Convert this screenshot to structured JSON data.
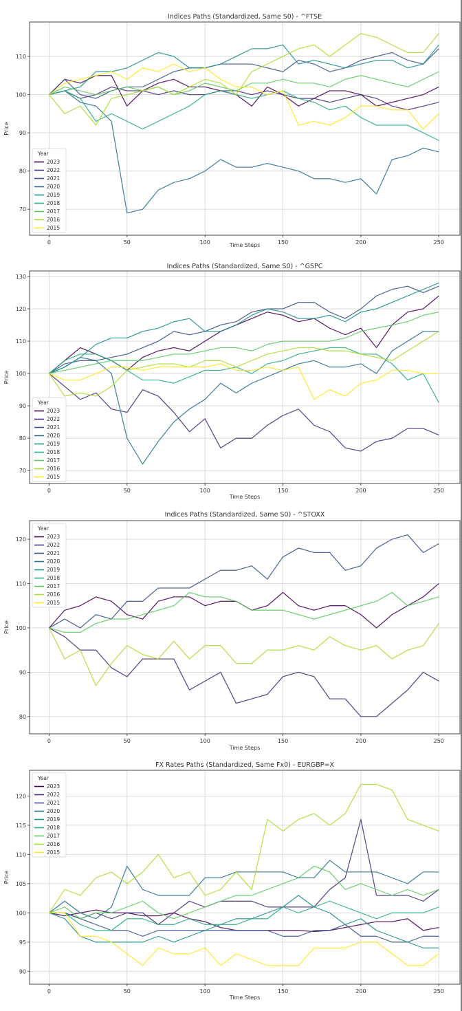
{
  "x_steps": [
    0,
    10,
    20,
    30,
    40,
    50,
    60,
    70,
    80,
    90,
    100,
    110,
    120,
    130,
    140,
    150,
    160,
    170,
    180,
    190,
    200,
    210,
    220,
    230,
    240,
    250
  ],
  "colors": {
    "2023": "#440154",
    "2022": "#472d7b",
    "2021": "#3b528b",
    "2020": "#2c728e",
    "2019": "#21918c",
    "2018": "#28ae80",
    "2017": "#5ec962",
    "2016": "#addc30",
    "2015": "#fde725"
  },
  "chart_data": [
    {
      "type": "line",
      "title": "Indices Paths (Standardized, Same S0) - ^FTSE",
      "xlabel": "Time Steps",
      "ylabel": "Price",
      "xlim": [
        -12.55,
        263.55
      ],
      "ylim": [
        63.2,
        119.0
      ],
      "xticks": [
        0,
        50,
        100,
        150,
        200,
        250
      ],
      "yticks": [
        70,
        80,
        90,
        100,
        110
      ],
      "grid": true,
      "legend_title": "Year",
      "legend_position": "lower-left",
      "series": [
        {
          "name": "2023",
          "values": [
            100,
            104,
            103,
            105,
            105,
            97,
            101,
            103,
            104,
            102,
            102,
            101,
            100,
            97,
            102,
            100,
            97,
            99,
            101,
            101,
            100,
            97,
            98,
            99,
            100,
            102
          ]
        },
        {
          "name": "2022",
          "values": [
            100,
            101,
            99,
            100,
            102,
            101,
            101,
            100,
            101,
            100,
            100,
            101,
            101,
            100,
            101,
            100,
            99,
            99,
            98,
            99,
            100,
            99,
            97,
            96,
            97,
            98
          ]
        },
        {
          "name": "2021",
          "values": [
            100,
            104,
            100,
            99,
            101,
            102,
            102,
            104,
            106,
            107,
            107,
            108,
            108,
            108,
            107,
            106,
            109,
            108,
            106,
            107,
            109,
            110,
            111,
            109,
            108,
            112
          ]
        },
        {
          "name": "2020",
          "values": [
            100,
            101,
            98,
            97,
            93,
            69,
            70,
            75,
            77,
            78,
            80,
            83,
            81,
            81,
            82,
            81,
            80,
            78,
            78,
            77,
            78,
            74,
            83,
            84,
            86,
            85
          ]
        },
        {
          "name": "2019",
          "values": [
            100,
            101,
            102,
            106,
            106,
            107,
            109,
            111,
            110,
            107,
            107,
            108,
            110,
            112,
            112,
            113,
            108,
            109,
            108,
            107,
            108,
            109,
            109,
            107,
            108,
            113
          ]
        },
        {
          "name": "2018",
          "values": [
            100,
            101,
            99,
            93,
            95,
            93,
            91,
            93,
            95,
            97,
            100,
            101,
            100,
            99,
            100,
            101,
            99,
            98,
            96,
            97,
            94,
            92,
            92,
            92,
            90,
            88
          ]
        },
        {
          "name": "2017",
          "values": [
            100,
            102,
            101,
            100,
            101,
            102,
            101,
            102,
            100,
            101,
            103,
            102,
            101,
            103,
            103,
            104,
            103,
            103,
            102,
            104,
            105,
            104,
            103,
            102,
            104,
            106
          ]
        },
        {
          "name": "2016",
          "values": [
            100,
            95,
            97,
            92,
            99,
            100,
            101,
            102,
            100,
            102,
            104,
            103,
            100,
            106,
            108,
            110,
            112,
            113,
            110,
            113,
            116,
            115,
            113,
            111,
            111,
            116
          ]
        },
        {
          "name": "2015",
          "values": [
            100,
            103,
            104,
            105,
            106,
            104,
            107,
            106,
            108,
            106,
            107,
            104,
            102,
            102,
            100,
            101,
            92,
            93,
            92,
            94,
            97,
            97,
            96,
            96,
            91,
            95
          ]
        }
      ]
    },
    {
      "type": "line",
      "title": "Indices Paths (Standardized, Same S0) - ^GSPC",
      "xlabel": "Time Steps",
      "ylabel": "Price",
      "xlim": [
        -12.55,
        263.55
      ],
      "ylim": [
        66.0,
        131.7
      ],
      "xticks": [
        0,
        50,
        100,
        150,
        200,
        250
      ],
      "yticks": [
        70,
        80,
        90,
        100,
        110,
        120,
        130
      ],
      "grid": true,
      "legend_title": "Year",
      "legend_position": "lower-left",
      "series": [
        {
          "name": "2023",
          "values": [
            100,
            104,
            108,
            106,
            104,
            101,
            105,
            107,
            108,
            107,
            110,
            113,
            115,
            117,
            119,
            118,
            116,
            117,
            114,
            112,
            114,
            108,
            115,
            119,
            120,
            124
          ]
        },
        {
          "name": "2022",
          "values": [
            100,
            96,
            92,
            94,
            89,
            88,
            95,
            93,
            88,
            82,
            86,
            77,
            80,
            80,
            84,
            87,
            89,
            84,
            82,
            77,
            76,
            79,
            80,
            83,
            83,
            81
          ]
        },
        {
          "name": "2021",
          "values": [
            100,
            103,
            104,
            104,
            105,
            106,
            108,
            110,
            113,
            112,
            113,
            115,
            116,
            119,
            120,
            120,
            122,
            122,
            119,
            117,
            120,
            124,
            126,
            127,
            125,
            127
          ]
        },
        {
          "name": "2020",
          "values": [
            100,
            102,
            105,
            104,
            100,
            80,
            72,
            79,
            85,
            89,
            92,
            97,
            94,
            97,
            99,
            101,
            103,
            104,
            102,
            102,
            103,
            100,
            107,
            110,
            113,
            113
          ]
        },
        {
          "name": "2019",
          "values": [
            100,
            102,
            105,
            109,
            111,
            111,
            113,
            114,
            116,
            117,
            113,
            113,
            115,
            118,
            120,
            119,
            117,
            117,
            118,
            116,
            119,
            120,
            122,
            124,
            126,
            128
          ]
        },
        {
          "name": "2018",
          "values": [
            100,
            104,
            106,
            106,
            104,
            101,
            98,
            98,
            97,
            99,
            101,
            101,
            102,
            100,
            103,
            104,
            106,
            107,
            108,
            108,
            106,
            106,
            103,
            98,
            100,
            91
          ]
        },
        {
          "name": "2017",
          "values": [
            100,
            101,
            102,
            103,
            104,
            104,
            104,
            105,
            106,
            106,
            107,
            108,
            108,
            107,
            109,
            110,
            110,
            110,
            110,
            111,
            113,
            114,
            115,
            116,
            118,
            119
          ]
        },
        {
          "name": "2016",
          "values": [
            100,
            93,
            94,
            93,
            96,
            101,
            102,
            103,
            103,
            102,
            104,
            104,
            102,
            104,
            106,
            107,
            108,
            108,
            107,
            107,
            106,
            105,
            104,
            107,
            110,
            113
          ]
        },
        {
          "name": "2015",
          "values": [
            100,
            98,
            98,
            100,
            102,
            102,
            101,
            102,
            102,
            102,
            102,
            103,
            101,
            101,
            102,
            101,
            102,
            92,
            95,
            93,
            97,
            98,
            101,
            101,
            100,
            100
          ]
        }
      ]
    },
    {
      "type": "line",
      "title": "Indices Paths (Standardized, Same S0) - ^STOXX",
      "xlabel": "Time Steps",
      "ylabel": "Price",
      "xlim": [
        -12.55,
        263.55
      ],
      "ylim": [
        76.1,
        124.2
      ],
      "xticks": [
        0,
        50,
        100,
        150,
        200,
        250
      ],
      "yticks": [
        80,
        90,
        100,
        110,
        120
      ],
      "grid": true,
      "legend_title": "Year",
      "legend_position": "upper-left",
      "series": [
        {
          "name": "2023",
          "values": [
            100,
            104,
            105,
            107,
            106,
            103,
            102,
            106,
            107,
            107,
            105,
            106,
            106,
            104,
            105,
            108,
            105,
            104,
            105,
            105,
            103,
            100,
            103,
            105,
            107,
            110
          ]
        },
        {
          "name": "2022",
          "values": [
            100,
            98,
            95,
            95,
            91,
            89,
            93,
            93,
            93,
            86,
            88,
            90,
            83,
            84,
            85,
            89,
            90,
            89,
            84,
            84,
            80,
            80,
            83,
            86,
            90,
            88
          ]
        },
        {
          "name": "2021",
          "values": [
            100,
            102,
            100,
            103,
            102,
            106,
            106,
            109,
            109,
            109,
            111,
            113,
            113,
            114,
            111,
            116,
            118,
            117,
            117,
            113,
            114,
            118,
            120,
            121,
            117,
            119
          ]
        },
        {
          "name": "2020",
          "values": []
        },
        {
          "name": "2019",
          "values": []
        },
        {
          "name": "2018",
          "values": []
        },
        {
          "name": "2017",
          "values": [
            100,
            99,
            99,
            101,
            102,
            102,
            103,
            104,
            105,
            108,
            107,
            107,
            106,
            104,
            104,
            104,
            103,
            102,
            103,
            104,
            105,
            106,
            108,
            105,
            106,
            107
          ]
        },
        {
          "name": "2016",
          "values": [
            100,
            93,
            95,
            87,
            92,
            96,
            94,
            93,
            97,
            93,
            96,
            96,
            92,
            92,
            95,
            95,
            96,
            95,
            98,
            96,
            95,
            96,
            93,
            95,
            96,
            101
          ]
        },
        {
          "name": "2015",
          "values": []
        }
      ]
    },
    {
      "type": "line",
      "title": "FX Rates Paths (Standardized, Same Fx0) - EURGBP=X",
      "xlabel": "Time Steps",
      "ylabel": "Price",
      "xlim": [
        -12.55,
        263.55
      ],
      "ylim": [
        87.8,
        124.4
      ],
      "xticks": [
        0,
        50,
        100,
        150,
        200,
        250
      ],
      "yticks": [
        90,
        95,
        100,
        105,
        110,
        115,
        120
      ],
      "grid": true,
      "legend_title": "Year",
      "legend_position": "upper-left",
      "series": [
        {
          "name": "2023",
          "values": [
            100,
            99.5,
            100,
            100.5,
            100,
            100,
            99.5,
            99.5,
            100,
            99,
            98.5,
            97.5,
            97,
            97,
            97,
            97,
            97,
            96.8,
            97,
            97.5,
            98,
            98.5,
            98.5,
            99,
            97,
            97.5
          ]
        },
        {
          "name": "2022",
          "values": [
            100,
            100,
            99,
            100,
            99,
            100,
            100,
            98,
            100,
            102,
            101,
            102,
            102,
            102,
            101,
            101,
            101,
            101,
            104,
            106,
            116,
            103,
            103,
            103,
            102,
            104
          ]
        },
        {
          "name": "2021",
          "values": [
            100,
            100,
            99,
            98,
            97,
            97,
            96,
            97,
            97,
            97,
            97,
            97,
            97,
            97,
            97,
            96,
            96,
            97,
            97,
            98,
            96,
            96,
            95,
            95,
            96,
            96
          ]
        },
        {
          "name": "2020",
          "values": [
            100,
            102,
            100,
            99,
            101,
            108,
            104,
            103,
            103,
            103,
            106,
            106,
            107,
            107,
            107,
            107,
            106,
            106,
            109,
            107,
            107,
            107,
            106,
            105,
            107,
            107
          ]
        },
        {
          "name": "2019",
          "values": [
            100,
            99,
            96,
            95,
            95,
            95,
            95,
            96,
            95,
            96,
            97,
            98,
            99,
            99,
            100,
            101,
            103,
            101,
            100,
            98,
            99,
            97,
            96,
            95,
            94,
            94
          ]
        },
        {
          "name": "2018",
          "values": [
            100,
            100,
            98,
            97,
            97,
            99,
            99,
            98,
            98,
            99,
            98,
            98,
            98,
            99,
            99,
            101,
            100,
            101,
            102,
            101,
            100,
            99,
            100,
            100,
            100,
            101
          ]
        },
        {
          "name": "2017",
          "values": [
            100,
            101,
            99,
            100,
            100,
            101,
            102,
            100,
            99,
            100,
            101,
            102,
            103,
            103,
            104,
            105,
            106,
            108,
            107,
            104,
            105,
            104,
            103,
            104,
            103,
            104
          ]
        },
        {
          "name": "2016",
          "values": [
            100,
            104,
            103,
            106,
            107,
            105,
            107,
            110,
            106,
            107,
            103,
            104,
            107,
            104,
            116,
            114,
            116,
            117,
            115,
            117,
            122,
            122,
            121,
            116,
            115,
            114
          ]
        },
        {
          "name": "2015",
          "values": [
            100,
            100,
            96,
            96,
            95,
            93,
            91,
            94,
            93,
            93,
            94,
            91,
            93,
            92,
            91,
            91,
            91,
            94,
            94,
            94,
            95,
            95,
            93,
            91,
            91,
            93
          ]
        }
      ]
    }
  ]
}
